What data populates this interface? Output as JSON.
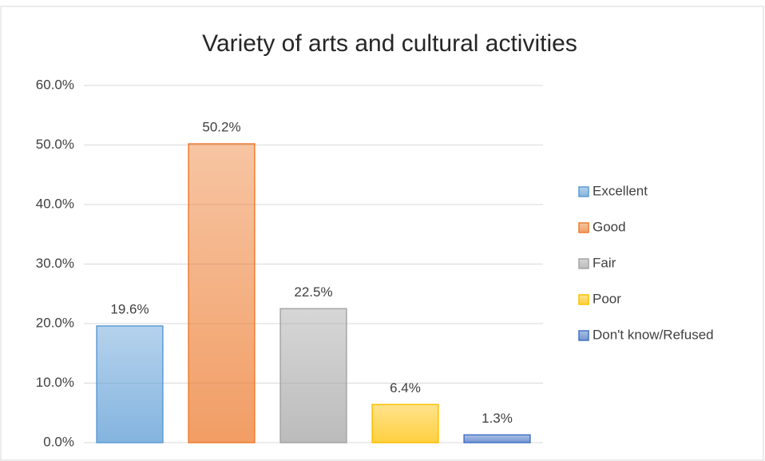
{
  "chart_data": {
    "type": "bar",
    "title": "Variety of arts and cultural activities",
    "series": [
      {
        "name": "Excellent",
        "color": "#5b9bd5",
        "values": [
          19.6
        ],
        "value_labels": [
          "19.6%"
        ]
      },
      {
        "name": "Good",
        "color": "#ed7d31",
        "values": [
          50.2
        ],
        "value_labels": [
          "50.2%"
        ]
      },
      {
        "name": "Fair",
        "color": "#a5a5a5",
        "values": [
          22.5
        ],
        "value_labels": [
          "22.5%"
        ]
      },
      {
        "name": "Poor",
        "color": "#ffc000",
        "values": [
          6.4
        ],
        "value_labels": [
          "6.4%"
        ]
      },
      {
        "name": "Don't know/Refused",
        "color": "#4472c4",
        "values": [
          1.3
        ],
        "value_labels": [
          "1.3%"
        ]
      }
    ],
    "ylim": [
      0,
      60
    ],
    "yticks": [
      {
        "value": 0,
        "label": "0.0%"
      },
      {
        "value": 10,
        "label": "10.0%"
      },
      {
        "value": 20,
        "label": "20.0%"
      },
      {
        "value": 30,
        "label": "30.0%"
      },
      {
        "value": 40,
        "label": "40.0%"
      },
      {
        "value": 50,
        "label": "50.0%"
      },
      {
        "value": 60,
        "label": "60.0%"
      }
    ],
    "grid": true,
    "legend": "right"
  }
}
